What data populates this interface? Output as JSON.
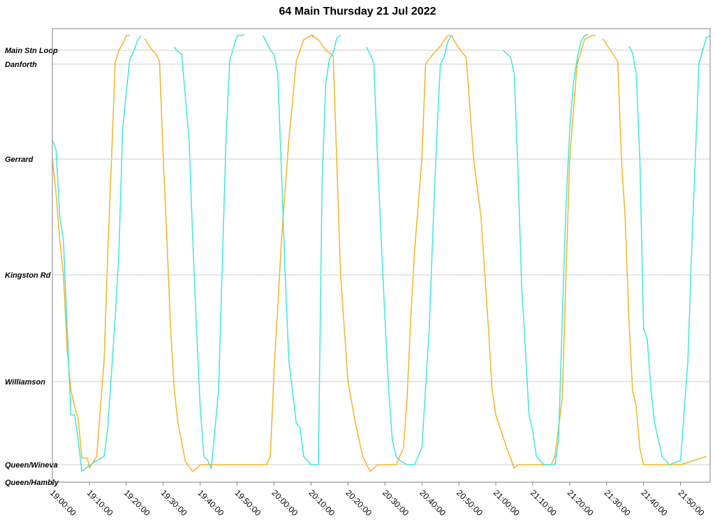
{
  "chart_data": {
    "type": "line",
    "title": "64 Main Thursday 21 Jul 2022",
    "xlabel": "",
    "ylabel": "",
    "xlim": [
      "19:00:00",
      "21:58:00"
    ],
    "x_ticks": [
      "19:00:00",
      "19:10:00",
      "19:20:00",
      "19:30:00",
      "19:40:00",
      "19:50:00",
      "20:00:00",
      "20:10:00",
      "20:20:00",
      "20:30:00",
      "20:40:00",
      "20:50:00",
      "21:00:00",
      "21:10:00",
      "21:20:00",
      "21:30:00",
      "21:40:00",
      "21:50:00"
    ],
    "stops": [
      "Main Stn Loop",
      "Danforth",
      "Gerrard",
      "Kingston Rd",
      "Williamson",
      "Queen/Wineva",
      "Queen/Hambly"
    ],
    "grid": true,
    "legend": "none",
    "colors": {
      "series_a": "#f5b325",
      "series_b": "#3ee6e0",
      "grid": "#9a9a9a",
      "frame": "#808080"
    },
    "series": [
      {
        "color": "#f5b325",
        "trips": [
          [
            [
              "19:00:00",
              3
            ],
            [
              "19:01:00",
              2.7
            ],
            [
              "19:02:00",
              2.3
            ],
            [
              "19:03:00",
              2
            ],
            [
              "19:04:00",
              1.3
            ],
            [
              "19:05:00",
              0.9
            ],
            [
              "19:06:00",
              0.7
            ],
            [
              "19:07:00",
              0.55
            ],
            [
              "19:08:00",
              0.08
            ],
            [
              "19:09:30",
              0.08
            ],
            [
              "19:10:00",
              -0.05
            ],
            [
              "19:12:00",
              0.1
            ],
            [
              "19:14:00",
              1.2
            ],
            [
              "19:15:00",
              2.2
            ],
            [
              "19:16:00",
              3.0
            ],
            [
              "19:17:00",
              4.1
            ],
            [
              "19:18:00",
              5.0
            ],
            [
              "19:19:00",
              5.3
            ],
            [
              "19:20:00",
              5.7
            ],
            [
              "19:21:00",
              5.7
            ]
          ],
          [
            [
              "19:25:00",
              5.55
            ],
            [
              "19:27:00",
              5.0
            ],
            [
              "19:28:00",
              4.75
            ],
            [
              "19:29:00",
              4.2
            ],
            [
              "19:30:00",
              3.0
            ],
            [
              "19:31:00",
              2.3
            ],
            [
              "19:32:00",
              1.5
            ],
            [
              "19:33:00",
              0.9
            ],
            [
              "19:34:00",
              0.5
            ],
            [
              "19:36:00",
              0.04
            ],
            [
              "19:38:00",
              -0.1
            ],
            [
              "19:40:00",
              0
            ],
            [
              "19:58:00",
              0
            ],
            [
              "19:59:00",
              0.1
            ],
            [
              "20:00:00",
              1.1
            ],
            [
              "20:01:00",
              1.7
            ],
            [
              "20:02:00",
              2.3
            ],
            [
              "20:04:00",
              3.2
            ],
            [
              "20:06:00",
              4.2
            ],
            [
              "20:08:00",
              5.5
            ],
            [
              "20:10:00",
              5.7
            ],
            [
              "20:11:00",
              5.7
            ]
          ],
          [
            [
              "20:10:00",
              5.7
            ],
            [
              "20:12:00",
              5.5
            ],
            [
              "20:14:00",
              5.0
            ],
            [
              "20:16:00",
              4.6
            ],
            [
              "20:18:00",
              2.0
            ],
            [
              "20:20:00",
              1.0
            ],
            [
              "20:22:00",
              0.5
            ],
            [
              "20:24:00",
              0.1
            ],
            [
              "20:26:00",
              -0.1
            ],
            [
              "20:28:00",
              0
            ],
            [
              "20:33:00",
              0
            ],
            [
              "20:35:00",
              0.2
            ],
            [
              "20:36:00",
              0.8
            ],
            [
              "20:37:00",
              1.6
            ],
            [
              "20:38:00",
              2.2
            ],
            [
              "20:40:00",
              3.0
            ],
            [
              "20:41:00",
              4.0
            ],
            [
              "20:42:00",
              4.4
            ],
            [
              "20:45:00",
              5.2
            ],
            [
              "20:47:00",
              5.7
            ],
            [
              "20:48:00",
              5.7
            ]
          ],
          [
            [
              "20:48:00",
              5.7
            ],
            [
              "20:50:00",
              5.1
            ],
            [
              "20:51:00",
              4.8
            ],
            [
              "20:52:00",
              4.5
            ],
            [
              "20:54:00",
              3.0
            ],
            [
              "20:56:00",
              2.5
            ],
            [
              "20:58:00",
              1.5
            ],
            [
              "20:59:00",
              0.9
            ],
            [
              "21:00:00",
              0.6
            ],
            [
              "21:03:00",
              0.2
            ],
            [
              "21:05:00",
              -0.05
            ],
            [
              "21:06:00",
              0
            ],
            [
              "21:15:00",
              0
            ],
            [
              "21:16:00",
              0.1
            ],
            [
              "21:18:00",
              0.8
            ],
            [
              "21:19:00",
              2.0
            ],
            [
              "21:20:00",
              3.0
            ],
            [
              "21:22:00",
              4.0
            ],
            [
              "21:24:00",
              5.5
            ],
            [
              "21:26:00",
              5.7
            ],
            [
              "21:27:00",
              5.7
            ]
          ],
          [
            [
              "21:29:00",
              5.55
            ],
            [
              "21:31:00",
              5.0
            ],
            [
              "21:32:00",
              4.6
            ],
            [
              "21:33:00",
              4.2
            ],
            [
              "21:34:00",
              3.0
            ],
            [
              "21:35:00",
              2.5
            ],
            [
              "21:36:00",
              1.6
            ],
            [
              "21:37:00",
              0.9
            ],
            [
              "21:38:00",
              0.7
            ],
            [
              "21:39:00",
              0.2
            ],
            [
              "21:40:00",
              0
            ],
            [
              "21:50:00",
              0
            ],
            [
              "21:57:00",
              0.1
            ]
          ]
        ]
      },
      {
        "color": "#3ee6e0",
        "trips": [
          [
            [
              "19:00:00",
              3.2
            ],
            [
              "19:01:00",
              3.1
            ],
            [
              "19:02:00",
              2.5
            ],
            [
              "19:03:00",
              2.3
            ],
            [
              "19:04:00",
              1.5
            ],
            [
              "19:05:00",
              0.6
            ],
            [
              "19:06:00",
              0.6
            ],
            [
              "19:07:00",
              0.3
            ],
            [
              "19:08:00",
              -0.1
            ],
            [
              "19:09:00",
              -0.05
            ],
            [
              "19:12:00",
              0.05
            ],
            [
              "19:14:00",
              0.1
            ],
            [
              "19:15:00",
              0.45
            ],
            [
              "19:17:00",
              1.6
            ],
            [
              "19:18:00",
              2.2
            ],
            [
              "19:19:00",
              3.3
            ],
            [
              "19:20:00",
              3.7
            ],
            [
              "19:21:00",
              4.4
            ],
            [
              "19:22:00",
              4.9
            ],
            [
              "19:23:00",
              5.45
            ],
            [
              "19:24:00",
              5.7
            ]
          ],
          [
            [
              "19:33:00",
              5.15
            ],
            [
              "19:34:00",
              4.9
            ],
            [
              "19:35:00",
              4.7
            ],
            [
              "19:37:00",
              3.2
            ],
            [
              "19:38:00",
              2.3
            ],
            [
              "19:39:00",
              1.5
            ],
            [
              "19:40:00",
              0.7
            ],
            [
              "19:41:00",
              0.1
            ],
            [
              "19:42:00",
              0.05
            ],
            [
              "19:43:00",
              -0.05
            ],
            [
              "19:45:00",
              0.9
            ],
            [
              "19:46:00",
              2.1
            ],
            [
              "19:47:00",
              3.2
            ],
            [
              "19:48:00",
              4.3
            ],
            [
              "19:49:00",
              5.1
            ],
            [
              "19:50:00",
              5.7
            ],
            [
              "19:51:00",
              5.7
            ],
            [
              "19:52:00",
              5.75
            ]
          ],
          [
            [
              "19:57:00",
              5.7
            ],
            [
              "19:59:00",
              5.0
            ],
            [
              "20:00:00",
              4.7
            ],
            [
              "20:01:00",
              3.9
            ],
            [
              "20:02:00",
              2.9
            ],
            [
              "20:03:00",
              2.0
            ],
            [
              "20:04:00",
              1.2
            ],
            [
              "20:06:00",
              0.5
            ],
            [
              "20:07:00",
              0.45
            ],
            [
              "20:08:00",
              0.1
            ],
            [
              "20:09:00",
              0.05
            ],
            [
              "20:10:00",
              0
            ],
            [
              "20:12:00",
              0
            ],
            [
              "20:13:00",
              2.8
            ],
            [
              "20:14:00",
              3.8
            ],
            [
              "20:15:00",
              4.4
            ],
            [
              "20:16:00",
              4.8
            ],
            [
              "20:17:00",
              5.6
            ],
            [
              "20:18:00",
              5.7
            ]
          ],
          [
            [
              "20:25:00",
              5.15
            ],
            [
              "20:26:00",
              4.7
            ],
            [
              "20:27:00",
              4.1
            ],
            [
              "20:28:00",
              3.0
            ],
            [
              "20:29:00",
              2.3
            ],
            [
              "20:30:00",
              1.6
            ],
            [
              "20:31:00",
              0.9
            ],
            [
              "20:32:00",
              0.3
            ],
            [
              "20:33:00",
              0.1
            ],
            [
              "20:34:00",
              0.05
            ],
            [
              "20:36:00",
              0
            ],
            [
              "20:38:00",
              0
            ],
            [
              "20:40:00",
              0.2
            ],
            [
              "20:42:00",
              1.5
            ],
            [
              "20:43:00",
              2.4
            ],
            [
              "20:44:00",
              3.2
            ],
            [
              "20:45:00",
              4.0
            ],
            [
              "20:46:00",
              4.5
            ],
            [
              "20:47:00",
              5.4
            ],
            [
              "20:48:00",
              5.7
            ]
          ],
          [
            [
              "21:02:00",
              5.0
            ],
            [
              "21:04:00",
              4.5
            ],
            [
              "21:05:00",
              3.9
            ],
            [
              "21:06:00",
              2.9
            ],
            [
              "21:07:00",
              1.9
            ],
            [
              "21:08:00",
              1.3
            ],
            [
              "21:09:00",
              0.6
            ],
            [
              "21:10:00",
              0.4
            ],
            [
              "21:11:00",
              0.1
            ],
            [
              "21:13:00",
              0
            ],
            [
              "21:16:00",
              0
            ],
            [
              "21:17:00",
              0.3
            ],
            [
              "21:18:00",
              1.6
            ],
            [
              "21:19:00",
              2.6
            ],
            [
              "21:20:00",
              3.3
            ],
            [
              "21:21:00",
              3.8
            ],
            [
              "21:22:00",
              4.4
            ],
            [
              "21:23:00",
              5.4
            ],
            [
              "21:24:00",
              5.7
            ],
            [
              "21:25:00",
              5.75
            ]
          ],
          [
            [
              "21:36:00",
              5.2
            ],
            [
              "21:37:00",
              4.8
            ],
            [
              "21:38:00",
              3.9
            ],
            [
              "21:39:00",
              3.0
            ],
            [
              "21:40:00",
              1.5
            ],
            [
              "21:41:00",
              1.4
            ],
            [
              "21:42:00",
              0.9
            ],
            [
              "21:43:00",
              0.5
            ],
            [
              "21:44:00",
              0.3
            ],
            [
              "21:45:00",
              0.1
            ],
            [
              "21:46:00",
              0.05
            ],
            [
              "21:47:00",
              0
            ],
            [
              "21:50:00",
              0.05
            ],
            [
              "21:52:00",
              1.2
            ],
            [
              "21:53:00",
              2.2
            ],
            [
              "21:54:00",
              3.0
            ],
            [
              "21:55:00",
              4.1
            ],
            [
              "21:56:00",
              5.0
            ],
            [
              "21:57:00",
              5.6
            ],
            [
              "21:58:00",
              5.7
            ]
          ]
        ]
      }
    ]
  }
}
